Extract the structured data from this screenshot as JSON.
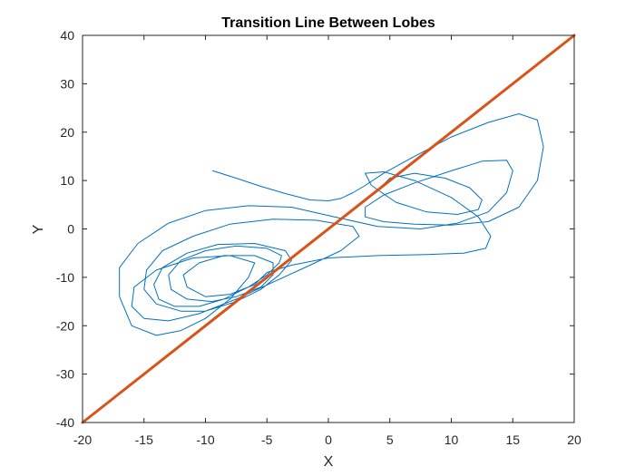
{
  "chart_data": {
    "type": "line",
    "title": "Transition Line Between Lobes",
    "xlabel": "X",
    "ylabel": "Y",
    "xlim": [
      -20,
      20
    ],
    "ylim": [
      -40,
      40
    ],
    "xticks": [
      -20,
      -15,
      -10,
      -5,
      0,
      5,
      10,
      15,
      20
    ],
    "yticks": [
      -40,
      -30,
      -20,
      -10,
      0,
      10,
      20,
      30,
      40
    ],
    "grid": false,
    "series": [
      {
        "color": "#0072BD",
        "x": [
          -9.4,
          -7.5,
          -5.5,
          -3.5,
          -1.5,
          0.0,
          1.0,
          2.0,
          3.0,
          4.5,
          7.0,
          10.0,
          13.0,
          15.5,
          17.0,
          17.5,
          17.0,
          15.5,
          13.0,
          10.0,
          7.0,
          4.5,
          3.0,
          3.0,
          4.5,
          7.0,
          10.0,
          12.5,
          14.5,
          15.0,
          14.5,
          13.0,
          10.5,
          7.5,
          4.0,
          0.5,
          -3.0,
          -6.5,
          -10.0,
          -13.0,
          -15.5,
          -17.0,
          -17.0,
          -16.0,
          -14.0,
          -12.0,
          -10.0,
          -8.0,
          -6.5,
          -6.0,
          -8.0,
          -11.0,
          -14.0,
          -15.8,
          -16.0,
          -15.0,
          -13.0,
          -10.5,
          -7.5,
          -4.5,
          -1.5,
          1.0,
          2.5,
          2.0,
          -1.0,
          -4.5,
          -8.0,
          -11.0,
          -13.5,
          -14.8,
          -15.0,
          -14.0,
          -12.0,
          -10.0,
          -7.5,
          -5.5,
          -4.0,
          -3.0,
          -3.5,
          -6.0,
          -9.0,
          -11.5,
          -13.5,
          -14.2,
          -13.8,
          -12.5,
          -10.5,
          -8.5,
          -6.5,
          -5.0,
          -4.0,
          -3.8,
          -5.0,
          -7.5,
          -10.0,
          -12.0,
          -13.0,
          -12.8,
          -11.5,
          -9.5,
          -7.5,
          -5.5,
          -4.5,
          -4.5,
          -6.0,
          -8.5,
          -10.5,
          -11.8,
          -11.5,
          -10.0,
          -8.0,
          -6.0,
          -5.0,
          -3.0,
          0.0,
          4.0,
          8.0,
          11.0,
          12.8,
          13.2,
          12.2,
          10.0,
          7.0,
          4.5,
          3.0,
          3.5,
          5.5,
          8.0,
          10.5,
          12.2,
          12.5,
          11.5,
          9.5,
          7.0,
          5.0,
          4.0
        ],
        "y": [
          12.0,
          10.5,
          8.8,
          7.3,
          6.0,
          5.8,
          6.3,
          7.5,
          9.0,
          11.5,
          15.0,
          19.0,
          22.0,
          23.8,
          22.5,
          17.0,
          10.0,
          4.5,
          1.5,
          0.8,
          1.0,
          1.5,
          2.5,
          4.5,
          7.0,
          9.5,
          12.0,
          14.0,
          14.2,
          12.0,
          7.5,
          3.5,
          1.2,
          0.0,
          0.5,
          2.5,
          4.5,
          4.8,
          3.8,
          1.2,
          -3.0,
          -8.0,
          -14.0,
          -20.0,
          -22.0,
          -21.0,
          -18.5,
          -14.5,
          -10.0,
          -7.0,
          -5.5,
          -6.0,
          -8.5,
          -12.0,
          -16.0,
          -18.5,
          -19.0,
          -17.5,
          -14.5,
          -11.0,
          -7.5,
          -4.5,
          -1.5,
          0.5,
          1.8,
          2.0,
          1.0,
          -1.5,
          -4.5,
          -8.5,
          -12.5,
          -15.5,
          -17.0,
          -17.0,
          -15.0,
          -12.5,
          -9.5,
          -6.5,
          -4.5,
          -3.0,
          -3.2,
          -5.0,
          -8.0,
          -11.5,
          -14.5,
          -16.0,
          -16.0,
          -14.5,
          -12.0,
          -9.5,
          -7.0,
          -5.5,
          -4.0,
          -3.5,
          -4.5,
          -6.5,
          -9.5,
          -12.5,
          -14.5,
          -15.0,
          -14.0,
          -12.0,
          -9.5,
          -7.0,
          -5.5,
          -5.5,
          -7.0,
          -9.5,
          -12.0,
          -14.0,
          -13.5,
          -11.5,
          -9.0,
          -7.5,
          -6.0,
          -5.5,
          -5.3,
          -5.0,
          -4.0,
          -1.5,
          2.5,
          6.5,
          10.0,
          11.8,
          11.5,
          9.0,
          5.5,
          3.5,
          3.0,
          4.0,
          6.0,
          8.5,
          10.5,
          11.5,
          10.5,
          8.0
        ]
      },
      {
        "color": "#D95319",
        "x": [
          -20,
          20
        ],
        "y": [
          -40,
          40
        ]
      }
    ]
  }
}
